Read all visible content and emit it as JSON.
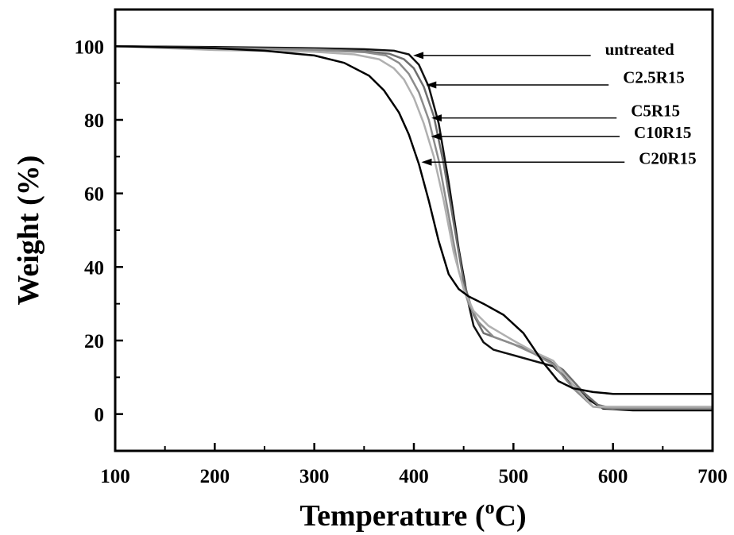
{
  "chart_data": {
    "type": "line",
    "title": "",
    "xlabel": "Temperature (",
    "xlabel_sup": "o",
    "xlabel_end": "C)",
    "ylabel": "Weight (%)",
    "xlim": [
      100,
      700
    ],
    "ylim": [
      -10,
      110
    ],
    "x_ticks": [
      100,
      200,
      300,
      400,
      500,
      600,
      700
    ],
    "y_ticks": [
      0,
      20,
      40,
      60,
      80,
      100
    ],
    "grid": false,
    "legend": "none",
    "series": [
      {
        "name": "untreated",
        "color": "#111111",
        "x": [
          100,
          200,
          300,
          350,
          380,
          395,
          405,
          415,
          425,
          435,
          445,
          455,
          460,
          470,
          480,
          500,
          520,
          540,
          560,
          575,
          590,
          620,
          700
        ],
        "y": [
          100,
          99.8,
          99.5,
          99.2,
          98.8,
          97.8,
          95,
          89,
          79,
          63,
          45,
          30,
          24,
          19.5,
          17.5,
          16,
          14.5,
          13,
          8,
          4,
          1.5,
          1,
          1
        ],
        "annotation_y": 97.5,
        "label_x": 592,
        "label_y": 99.2
      },
      {
        "name": "C2.5R15",
        "color": "#6e6e6e",
        "x": [
          100,
          200,
          300,
          350,
          375,
          390,
          400,
          410,
          420,
          430,
          440,
          450,
          460,
          470,
          490,
          510,
          530,
          550,
          570,
          585,
          600,
          700
        ],
        "y": [
          100,
          99.6,
          99.2,
          98.7,
          98,
          96.5,
          94,
          89,
          81,
          68,
          52,
          36,
          27,
          22,
          20,
          18,
          15.5,
          12,
          6,
          2.5,
          1.5,
          1.5
        ],
        "annotation_y": 89.5,
        "label_x": 610,
        "label_y": 91.5
      },
      {
        "name": "C5R15",
        "color": "#8c8c8c",
        "x": [
          100,
          200,
          300,
          350,
          372,
          385,
          395,
          405,
          415,
          425,
          435,
          445,
          455,
          465,
          480,
          500,
          520,
          540,
          560,
          580,
          600,
          700
        ],
        "y": [
          100,
          99.5,
          99,
          98.4,
          97.5,
          95.5,
          92.5,
          87.5,
          80,
          69,
          54,
          39,
          30,
          25,
          21,
          19,
          16.5,
          13.5,
          7,
          2,
          1.5,
          1.5
        ],
        "annotation_y": 80.5,
        "label_x": 618,
        "label_y": 82.5
      },
      {
        "name": "C10R15",
        "color": "#b0b0b0",
        "x": [
          100,
          200,
          300,
          340,
          365,
          380,
          390,
          400,
          410,
          420,
          430,
          440,
          450,
          460,
          475,
          500,
          520,
          540,
          560,
          580,
          600,
          700
        ],
        "y": [
          100,
          99,
          98.5,
          97.8,
          96.5,
          94,
          91,
          86,
          79,
          70,
          58,
          44,
          34,
          28,
          24,
          20,
          17,
          14.5,
          8,
          2,
          2,
          2
        ],
        "annotation_y": 75.5,
        "label_x": 621,
        "label_y": 76.5
      },
      {
        "name": "C20R15",
        "color": "#000000",
        "x": [
          100,
          200,
          250,
          300,
          330,
          355,
          370,
          385,
          395,
          405,
          415,
          425,
          435,
          445,
          455,
          470,
          490,
          510,
          530,
          545,
          560,
          580,
          600,
          700
        ],
        "y": [
          100,
          99.5,
          98.8,
          97.5,
          95.5,
          92,
          88,
          82,
          76,
          68,
          58,
          47,
          38,
          34,
          32,
          30,
          27,
          22,
          14,
          9,
          7,
          6,
          5.5,
          5.5
        ],
        "annotation_y": 68.5,
        "label_x": 626,
        "label_y": 69.5
      }
    ]
  }
}
